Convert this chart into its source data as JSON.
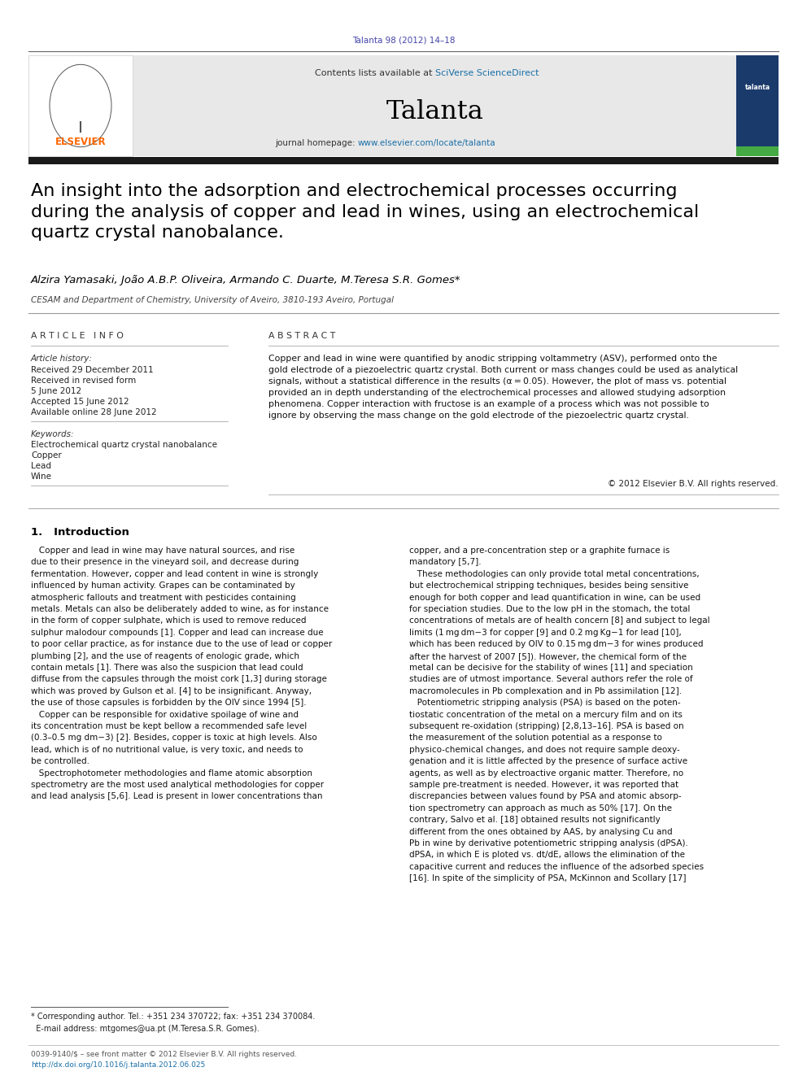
{
  "page_width": 9.92,
  "page_height": 13.23,
  "bg_color": "#ffffff",
  "top_journal_ref": "Talanta 98 (2012) 14–18",
  "top_journal_ref_color": "#4444aa",
  "header_bg": "#e8e8e8",
  "header_sciverse_color": "#1a6fa8",
  "journal_name": "Talanta",
  "journal_homepage_url": "www.elsevier.com/locate/talanta",
  "journal_homepage_url_color": "#1a6fa8",
  "black_bar_color": "#1a1a1a",
  "article_title": "An insight into the adsorption and electrochemical processes occurring\nduring the analysis of copper and lead in wines, using an electrochemical\nquartz crystal nanobalance.",
  "authors": "Alzira Yamasaki, João A.B.P. Oliveira, Armando C. Duarte, M.Teresa S.R. Gomes*",
  "affiliation": "CESAM and Department of Chemistry, University of Aveiro, 3810-193 Aveiro, Portugal",
  "section_article_info": "A R T I C L E   I N F O",
  "article_history_label": "Article history:",
  "article_history_lines": [
    "Received 29 December 2011",
    "Received in revised form",
    "5 June 2012",
    "Accepted 15 June 2012",
    "Available online 28 June 2012"
  ],
  "keywords_label": "Keywords:",
  "keywords": [
    "Electrochemical quartz crystal nanobalance",
    "Copper",
    "Lead",
    "Wine"
  ],
  "section_abstract": "A B S T R A C T",
  "abstract_text": "Copper and lead in wine were quantified by anodic stripping voltammetry (ASV), performed onto the\ngold electrode of a piezoelectric quartz crystal. Both current or mass changes could be used as analytical\nsignals, without a statistical difference in the results (α = 0.05). However, the plot of mass vs. potential\nprovided an in depth understanding of the electrochemical processes and allowed studying adsorption\nphenomena. Copper interaction with fructose is an example of a process which was not possible to\nignore by observing the mass change on the gold electrode of the piezoelectric quartz crystal.",
  "abstract_copyright": "© 2012 Elsevier B.V. All rights reserved.",
  "intro_heading": "1.   Introduction",
  "intro_col1": "   Copper and lead in wine may have natural sources, and rise\ndue to their presence in the vineyard soil, and decrease during\nfermentation. However, copper and lead content in wine is strongly\ninfluenced by human activity. Grapes can be contaminated by\natmospheric fallouts and treatment with pesticides containing\nmetals. Metals can also be deliberately added to wine, as for instance\nin the form of copper sulphate, which is used to remove reduced\nsulphur malodour compounds [1]. Copper and lead can increase due\nto poor cellar practice, as for instance due to the use of lead or copper\nplumbing [2], and the use of reagents of enologic grade, which\ncontain metals [1]. There was also the suspicion that lead could\ndiffuse from the capsules through the moist cork [1,3] during storage\nwhich was proved by Gulson et al. [4] to be insignificant. Anyway,\nthe use of those capsules is forbidden by the OIV since 1994 [5].\n   Copper can be responsible for oxidative spoilage of wine and\nits concentration must be kept bellow a recommended safe level\n(0.3–0.5 mg dm−3) [2]. Besides, copper is toxic at high levels. Also\nlead, which is of no nutritional value, is very toxic, and needs to\nbe controlled.\n   Spectrophotometer methodologies and flame atomic absorption\nspectrometry are the most used analytical methodologies for copper\nand lead analysis [5,6]. Lead is present in lower concentrations than",
  "intro_col2": "copper, and a pre-concentration step or a graphite furnace is\nmandatory [5,7].\n   These methodologies can only provide total metal concentrations,\nbut electrochemical stripping techniques, besides being sensitive\nenough for both copper and lead quantification in wine, can be used\nfor speciation studies. Due to the low pH in the stomach, the total\nconcentrations of metals are of health concern [8] and subject to legal\nlimits (1 mg dm−3 for copper [9] and 0.2 mg Kg−1 for lead [10],\nwhich has been reduced by OIV to 0.15 mg dm−3 for wines produced\nafter the harvest of 2007 [5]). However, the chemical form of the\nmetal can be decisive for the stability of wines [11] and speciation\nstudies are of utmost importance. Several authors refer the role of\nmacromolecules in Pb complexation and in Pb assimilation [12].\n   Potentiometric stripping analysis (PSA) is based on the poten-\ntiostatic concentration of the metal on a mercury film and on its\nsubsequent re-oxidation (stripping) [2,8,13–16]. PSA is based on\nthe measurement of the solution potential as a response to\nphysico-chemical changes, and does not require sample deoxy-\ngenation and it is little affected by the presence of surface active\nagents, as well as by electroactive organic matter. Therefore, no\nsample pre-treatment is needed. However, it was reported that\ndiscrepancies between values found by PSA and atomic absorp-\ntion spectrometry can approach as much as 50% [17]. On the\ncontrary, Salvo et al. [18] obtained results not significantly\ndifferent from the ones obtained by AAS, by analysing Cu and\nPb in wine by derivative potentiometric stripping analysis (dPSA).\ndPSA, in which E is ploted vs. dt/dE, allows the elimination of the\ncapacitive current and reduces the influence of the adsorbed species\n[16]. In spite of the simplicity of PSA, McKinnon and Scollary [17]",
  "footnote1": "* Corresponding author. Tel.: +351 234 370722; fax: +351 234 370084.",
  "footnote2": "  E-mail address: mtgomes@ua.pt (M.Teresa.S.R. Gomes).",
  "bottom_line1": "0039-9140/$ – see front matter © 2012 Elsevier B.V. All rights reserved.",
  "bottom_line2": "http://dx.doi.org/10.1016/j.talanta.2012.06.025"
}
